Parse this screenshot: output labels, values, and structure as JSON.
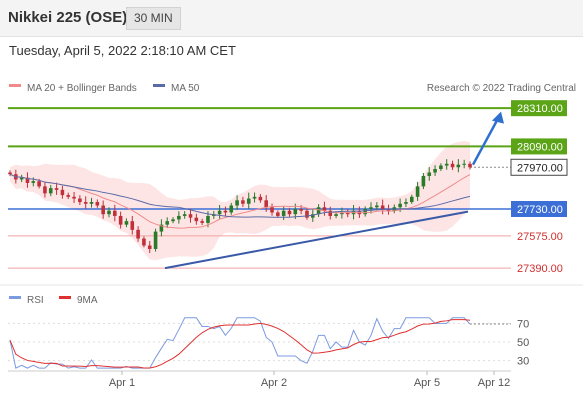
{
  "header": {
    "title": "Nikkei 225 (OSE)",
    "timeframe": "30 MIN"
  },
  "datetime": "Tuesday, April 5, 2022 2:18:10 AM CET",
  "legend": {
    "ma20": "MA 20 + Bollinger Bands",
    "ma50": "MA 50",
    "credit": "Research © 2022 Trading Central"
  },
  "rsi_legend": {
    "rsi": "RSI",
    "ma": "9MA"
  },
  "colors": {
    "resistance": "#5aa415",
    "support": "#3b6fd6",
    "ma20": "#f08a8a",
    "ma50": "#5a6aa8",
    "band": "#fde0e0",
    "rsi": "#7b9ae0",
    "rsi_ma": "#e03030"
  },
  "chart_data": [
    {
      "type": "candlestick",
      "ylim": [
        27310,
        28380
      ],
      "x_ticks": [
        "Apr 1",
        "Apr 2",
        "Apr 5",
        "Apr 12"
      ],
      "levels": [
        {
          "value": 28310,
          "label": "28310.00",
          "kind": "resistance"
        },
        {
          "value": 28090,
          "label": "28090.00",
          "kind": "resistance"
        },
        {
          "value": 27970,
          "label": "27970.00",
          "kind": "last"
        },
        {
          "value": 27730,
          "label": "27730.00",
          "kind": "pivot"
        },
        {
          "value": 27575,
          "label": "27575.00",
          "kind": "support"
        },
        {
          "value": 27390,
          "label": "27390.00",
          "kind": "support"
        }
      ],
      "series_close": [
        27930,
        27900,
        27910,
        27880,
        27890,
        27860,
        27820,
        27850,
        27840,
        27810,
        27800,
        27790,
        27770,
        27760,
        27770,
        27750,
        27700,
        27720,
        27690,
        27640,
        27660,
        27610,
        27560,
        27520,
        27500,
        27600,
        27640,
        27660,
        27670,
        27690,
        27700,
        27680,
        27660,
        27650,
        27690,
        27700,
        27720,
        27710,
        27750,
        27780,
        27760,
        27790,
        27800,
        27780,
        27740,
        27710,
        27690,
        27720,
        27700,
        27730,
        27720,
        27680,
        27700,
        27740,
        27720,
        27690,
        27700,
        27710,
        27700,
        27720,
        27700,
        27730,
        27740,
        27750,
        27730,
        27720,
        27740,
        27760,
        27770,
        27800,
        27860,
        27920,
        27940,
        27960,
        27980,
        27990,
        27970,
        27985,
        27990,
        27970
      ]
    },
    {
      "type": "line",
      "title": "RSI",
      "ylim": [
        20,
        80
      ],
      "y_ticks": [
        70,
        50,
        30
      ]
    }
  ]
}
